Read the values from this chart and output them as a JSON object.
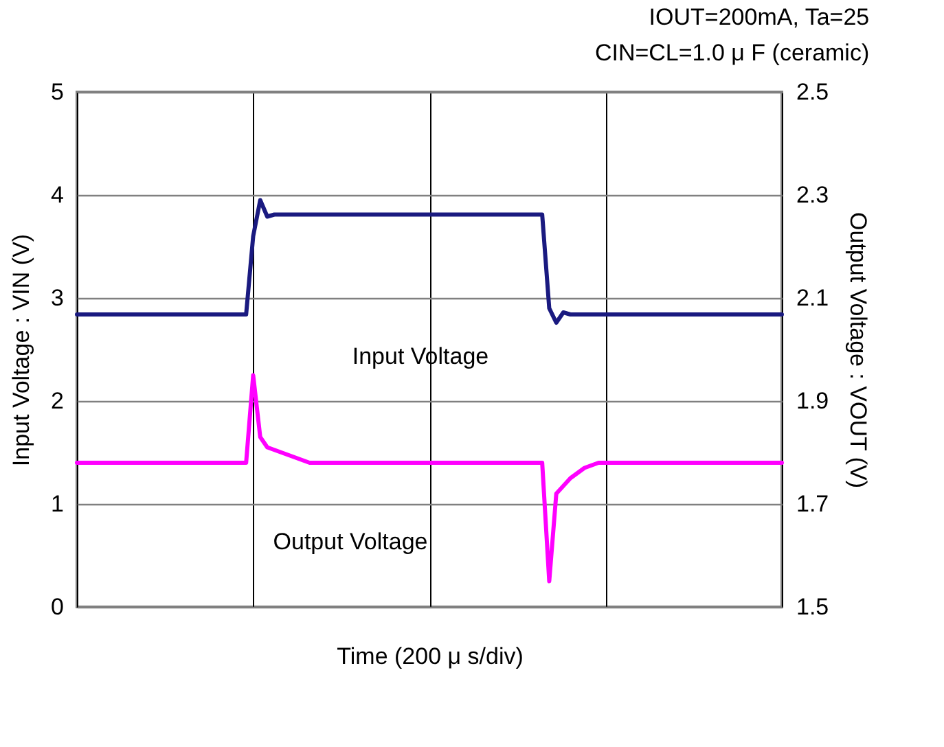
{
  "chart_data": {
    "type": "line",
    "annotations": [
      "IOUT=200mA,  Ta=25",
      "CIN=CL=1.0 μ F (ceramic)"
    ],
    "xlabel": "Time  (200 μ s/div)",
    "ylabel": "Input Voltage : VIN (V)",
    "y2label": "Output Voltage : VOUT (V)",
    "categories": [
      null,
      null,
      null,
      null,
      null,
      null,
      null,
      null,
      null,
      null,
      null,
      null,
      null,
      null,
      null,
      null,
      null,
      null,
      null,
      null,
      null,
      null,
      null,
      null,
      null,
      null,
      null,
      null,
      null,
      null,
      null,
      null,
      null,
      null,
      null,
      null,
      null,
      null,
      null,
      null,
      null,
      null,
      null,
      null,
      null,
      null,
      null,
      null,
      null,
      null,
      null,
      null,
      null,
      null,
      null,
      null,
      null,
      null,
      null,
      null,
      null,
      null,
      null,
      null,
      null,
      null,
      null,
      null,
      null,
      null,
      null,
      null,
      null,
      null,
      null,
      null,
      null,
      null,
      null,
      null,
      null,
      null,
      null,
      null,
      null,
      null,
      null,
      null,
      null,
      null,
      null,
      null,
      null,
      null,
      null,
      null,
      null,
      null,
      null,
      null,
      null
    ],
    "series": [
      {
        "name": "Input Voltage",
        "color": "#1a1a80",
        "values": [
          2.84,
          2.84,
          2.84,
          2.84,
          2.84,
          2.84,
          2.84,
          2.84,
          2.84,
          2.84,
          2.84,
          2.84,
          2.84,
          2.84,
          2.84,
          2.84,
          2.84,
          2.84,
          2.84,
          2.84,
          2.84,
          2.84,
          2.84,
          2.84,
          2.84,
          3.6,
          3.95,
          3.79,
          3.81,
          3.81,
          3.81,
          3.81,
          3.81,
          3.81,
          3.81,
          3.81,
          3.81,
          3.81,
          3.81,
          3.81,
          3.81,
          3.81,
          3.81,
          3.81,
          3.81,
          3.81,
          3.81,
          3.81,
          3.81,
          3.81,
          3.81,
          3.81,
          3.81,
          3.81,
          3.81,
          3.81,
          3.81,
          3.81,
          3.81,
          3.81,
          3.81,
          3.81,
          3.81,
          3.81,
          3.81,
          3.81,
          3.81,
          2.9,
          2.76,
          2.86,
          2.84,
          2.84,
          2.84,
          2.84,
          2.84,
          2.84,
          2.84,
          2.84,
          2.84,
          2.84,
          2.84,
          2.84,
          2.84,
          2.84,
          2.84,
          2.84,
          2.84,
          2.84,
          2.84,
          2.84,
          2.84,
          2.84,
          2.84,
          2.84,
          2.84,
          2.84,
          2.84,
          2.84,
          2.84,
          2.84,
          2.84
        ]
      },
      {
        "name": "Output Voltage",
        "color": "#ff00ff",
        "axis": "y2",
        "values": [
          1.78,
          1.78,
          1.78,
          1.78,
          1.78,
          1.78,
          1.78,
          1.78,
          1.78,
          1.78,
          1.78,
          1.78,
          1.78,
          1.78,
          1.78,
          1.78,
          1.78,
          1.78,
          1.78,
          1.78,
          1.78,
          1.78,
          1.78,
          1.78,
          1.78,
          1.95,
          1.83,
          1.81,
          1.805,
          1.8,
          1.795,
          1.79,
          1.785,
          1.78,
          1.78,
          1.78,
          1.78,
          1.78,
          1.78,
          1.78,
          1.78,
          1.78,
          1.78,
          1.78,
          1.78,
          1.78,
          1.78,
          1.78,
          1.78,
          1.78,
          1.78,
          1.78,
          1.78,
          1.78,
          1.78,
          1.78,
          1.78,
          1.78,
          1.78,
          1.78,
          1.78,
          1.78,
          1.78,
          1.78,
          1.78,
          1.78,
          1.78,
          1.55,
          1.72,
          1.735,
          1.75,
          1.76,
          1.77,
          1.775,
          1.78,
          1.78,
          1.78,
          1.78,
          1.78,
          1.78,
          1.78,
          1.78,
          1.78,
          1.78,
          1.78,
          1.78,
          1.78,
          1.78,
          1.78,
          1.78,
          1.78,
          1.78,
          1.78,
          1.78,
          1.78,
          1.78,
          1.78,
          1.78,
          1.78,
          1.78,
          1.78
        ]
      }
    ],
    "ylim": [
      0,
      5
    ],
    "yticks": [
      0,
      1,
      2,
      3,
      4,
      5
    ],
    "y2lim": [
      1.5,
      2.5
    ],
    "y2ticks": [
      1.5,
      1.7,
      1.9,
      2.1,
      2.3,
      2.5
    ],
    "grid": true
  }
}
